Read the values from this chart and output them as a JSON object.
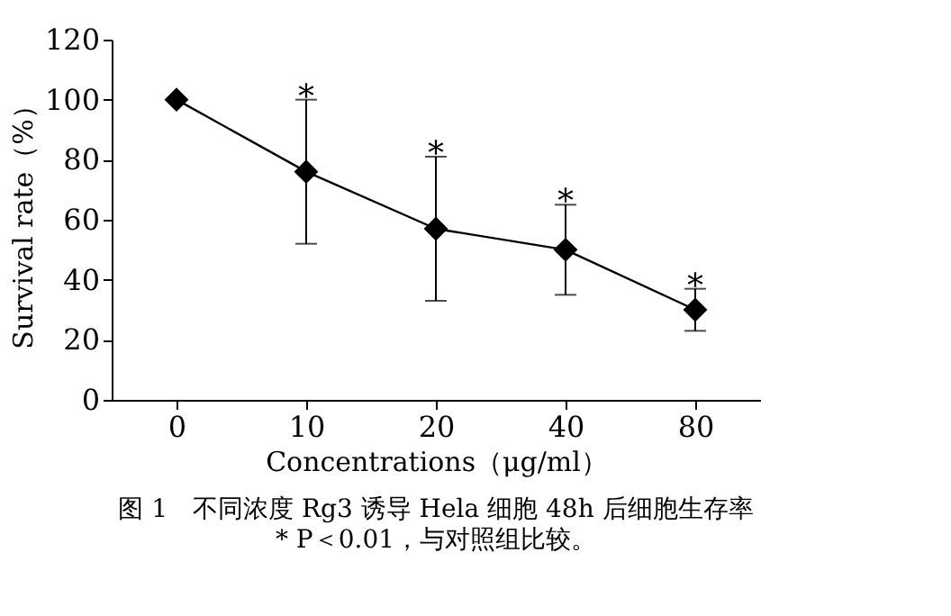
{
  "chart_data": {
    "type": "line",
    "title": "图 1　不同浓度 Rg3 诱导 Hela 细胞 48h 后细胞生存率",
    "xlabel": "Concentrations（μg/ml）",
    "ylabel": "Survival rate（%）",
    "categories": [
      "0",
      "10",
      "20",
      "40",
      "80"
    ],
    "series": [
      {
        "color": "#000000",
        "values": [
          100,
          76,
          57,
          50,
          30
        ],
        "errors": [
          null,
          24,
          24,
          15,
          7
        ]
      }
    ],
    "ylim": [
      0,
      120
    ],
    "yticks": [
      0,
      20,
      40,
      60,
      80,
      100,
      120
    ],
    "marker": "diamond",
    "line_style": "solid",
    "grid": false,
    "annotations": [
      {
        "text": "*",
        "x": "10",
        "y": 100
      },
      {
        "text": "*",
        "x": "20",
        "y": 81
      },
      {
        "text": "*",
        "x": "40",
        "y": 65
      },
      {
        "text": "*",
        "x": "80",
        "y": 37
      },
      "* P＜0.01，与对照组比较。"
    ]
  }
}
